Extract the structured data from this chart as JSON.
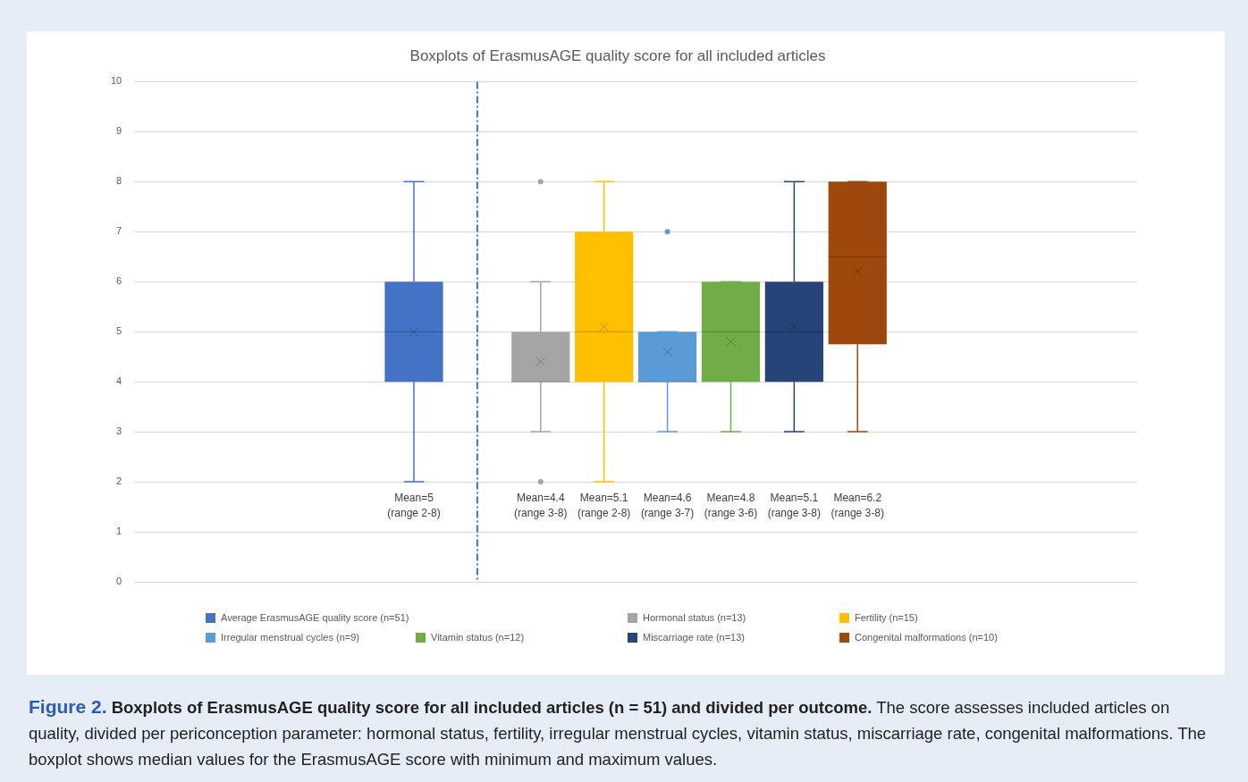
{
  "chart_data": {
    "type": "box",
    "title": "Boxplots of ErasmusAGE quality score for all included articles",
    "categories": [
      null
    ],
    "series": [
      {
        "name": "Average ErasmusAGE quality score (n=51)",
        "color": "#4472c4",
        "boxes": [
          {
            "low": 2,
            "q1": 4,
            "median": 5,
            "q3": 6,
            "high": 8,
            "mean": 5
          }
        ]
      },
      {
        "boxes": [
          null
        ]
      },
      {
        "name": "Hormonal status (n=13)",
        "color": "#a5a5a5",
        "boxes": [
          {
            "low": 3,
            "q1": 4,
            "median": 4,
            "q3": 5,
            "high": 6,
            "mean": 4.4,
            "outliers": [
              8,
              2
            ]
          }
        ]
      },
      {
        "name": "Fertility (n=15)",
        "color": "#ffc000",
        "boxes": [
          {
            "low": 2,
            "q1": 4,
            "median": 5,
            "q3": 7,
            "high": 8,
            "mean": 5.1
          }
        ]
      },
      {
        "name": "Irregular menstrual cycles (n=9)",
        "color": "#5b9bd5",
        "boxes": [
          {
            "low": 3,
            "q1": 4,
            "median": 4,
            "q3": 5,
            "high": 5,
            "mean": 4.6,
            "outliers": [
              7
            ]
          }
        ]
      },
      {
        "name": "Vitamin status (n=12)",
        "color": "#70ad47",
        "boxes": [
          {
            "low": 3,
            "q1": 4,
            "median": 5,
            "q3": 6,
            "high": 6,
            "mean": 4.8
          }
        ]
      },
      {
        "name": "Miscarriage rate (n=13)",
        "color": "#264478",
        "boxes": [
          {
            "low": 3,
            "q1": 4,
            "median": 5,
            "q3": 6,
            "high": 8,
            "mean": 5.1
          }
        ]
      },
      {
        "name": "Congenital malformations (n=10)",
        "color": "#9e480e",
        "boxes": [
          {
            "low": 3,
            "q1": 4.75,
            "median": 6.5,
            "q3": 8,
            "high": 8,
            "mean": 6.2
          }
        ]
      }
    ],
    "ylim": [
      0,
      10
    ],
    "yticks": [
      0,
      1,
      2,
      3,
      4,
      5,
      6,
      7,
      8,
      9,
      10
    ],
    "grid": "y",
    "legend": "bottom",
    "annotations": [
      "Mean=5\n(range 2-8)",
      "Mean=4.4\n(range 3-8)",
      "Mean=5.1\n(range 2-8)",
      "Mean=4.6\n(range 3-7)",
      "Mean=4.8\n(range 3-6)",
      "Mean=5.1\n(range 3-8)",
      "Mean=6.2\n(range 3-8)",
      "Figure 2.",
      "Boxplots of ErasmusAGE quality score for all included articles (n = 51) and divided per outcome.",
      "The score assesses included articles on quality, divided per periconception parameter: hormonal status, fertility, irregular menstrual cycles, vitamin status, miscarriage rate, congenital malformations. The boxplot shows median values for the ErasmusAGE score with minimum and maximum values."
    ]
  }
}
